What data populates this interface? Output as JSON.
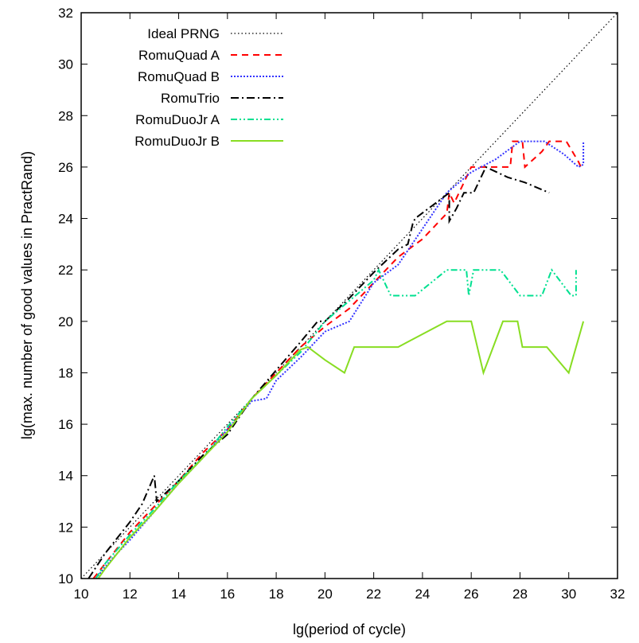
{
  "chart_data": {
    "type": "line",
    "title": "",
    "xlabel": "lg(period of cycle)",
    "ylabel": "lg(max. number of good values in PractRand)",
    "xlim": [
      10,
      32
    ],
    "ylim": [
      10,
      32
    ],
    "xticks": [
      10,
      12,
      14,
      16,
      18,
      20,
      22,
      24,
      26,
      28,
      30,
      32
    ],
    "yticks": [
      10,
      12,
      14,
      16,
      18,
      20,
      22,
      24,
      26,
      28,
      30,
      32
    ],
    "grid": false,
    "legend_position": "top-left",
    "series": [
      {
        "name": "Ideal PRNG",
        "color": "#000000",
        "dash": "dotted",
        "points": [
          [
            10,
            10
          ],
          [
            32,
            32
          ]
        ]
      },
      {
        "name": "RomuQuad A",
        "color": "#ff0000",
        "dash": "dashed",
        "points": [
          [
            10.5,
            10
          ],
          [
            11,
            10.6
          ],
          [
            12,
            11.8
          ],
          [
            13,
            12.8
          ],
          [
            14,
            13.8
          ],
          [
            15,
            14.9
          ],
          [
            16,
            15.8
          ],
          [
            17,
            17
          ],
          [
            18,
            18
          ],
          [
            19,
            19
          ],
          [
            20,
            19.8
          ],
          [
            21,
            20.5
          ],
          [
            22,
            21.5
          ],
          [
            23,
            22.5
          ],
          [
            24,
            23.2
          ],
          [
            25,
            24.2
          ],
          [
            25.1,
            25
          ],
          [
            25.3,
            24.6
          ],
          [
            26,
            26
          ],
          [
            27,
            26
          ],
          [
            27.6,
            26
          ],
          [
            27.7,
            27
          ],
          [
            28.1,
            27
          ],
          [
            28.2,
            26
          ],
          [
            28.9,
            26.6
          ],
          [
            29.2,
            27
          ],
          [
            29.9,
            27
          ],
          [
            30.4,
            26.2
          ],
          [
            30.5,
            26
          ]
        ]
      },
      {
        "name": "RomuQuad B",
        "color": "#3333ff",
        "dash": "dotted-dense",
        "points": [
          [
            10.6,
            10
          ],
          [
            11.2,
            10.7
          ],
          [
            12,
            11.5
          ],
          [
            13,
            12.6
          ],
          [
            14,
            13.7
          ],
          [
            15,
            14.7
          ],
          [
            16,
            15.8
          ],
          [
            17,
            16.9
          ],
          [
            17.6,
            17
          ],
          [
            18,
            17.7
          ],
          [
            19,
            18.6
          ],
          [
            20,
            19.6
          ],
          [
            21,
            20
          ],
          [
            22,
            21.5
          ],
          [
            23,
            22.2
          ],
          [
            24,
            23.6
          ],
          [
            25,
            25
          ],
          [
            26,
            25.8
          ],
          [
            27,
            26.3
          ],
          [
            28,
            27
          ],
          [
            29,
            27
          ],
          [
            29.8,
            26.5
          ],
          [
            30.4,
            26
          ],
          [
            30.6,
            26.1
          ],
          [
            30.6,
            27
          ]
        ]
      },
      {
        "name": "RomuTrio",
        "color": "#000000",
        "dash": "dash-dot",
        "points": [
          [
            10.3,
            10
          ],
          [
            11,
            11
          ],
          [
            12,
            12.2
          ],
          [
            12.5,
            12.9
          ],
          [
            13,
            14
          ],
          [
            13.1,
            13
          ],
          [
            14,
            13.8
          ],
          [
            15,
            14.8
          ],
          [
            16,
            15.6
          ],
          [
            17,
            17
          ],
          [
            18,
            18.1
          ],
          [
            19,
            19.2
          ],
          [
            19.7,
            20
          ],
          [
            20,
            20
          ],
          [
            21,
            20.9
          ],
          [
            22,
            21.9
          ],
          [
            23,
            22.8
          ],
          [
            23.4,
            23
          ],
          [
            23.6,
            23.8
          ],
          [
            23.7,
            24
          ],
          [
            24.4,
            24.5
          ],
          [
            25.1,
            25
          ],
          [
            25.1,
            23.9
          ],
          [
            25.4,
            24.4
          ],
          [
            25.7,
            25
          ],
          [
            26.1,
            25
          ],
          [
            26.6,
            26
          ],
          [
            27.5,
            25.6
          ],
          [
            28.2,
            25.4
          ],
          [
            29.2,
            25
          ]
        ]
      },
      {
        "name": "RomuDuoJr A",
        "color": "#00e090",
        "dash": "dash-dot-dot",
        "points": [
          [
            10.6,
            10
          ],
          [
            11,
            10.6
          ],
          [
            12,
            11.7
          ],
          [
            13,
            12.7
          ],
          [
            14,
            13.8
          ],
          [
            15,
            14.7
          ],
          [
            16,
            15.9
          ],
          [
            17,
            17
          ],
          [
            18,
            17.9
          ],
          [
            19,
            18.8
          ],
          [
            20,
            20
          ],
          [
            21,
            20.8
          ],
          [
            22,
            21.6
          ],
          [
            22.2,
            22
          ],
          [
            22.7,
            21
          ],
          [
            23.7,
            21
          ],
          [
            25,
            22
          ],
          [
            25.8,
            22
          ],
          [
            25.9,
            21
          ],
          [
            26.1,
            22
          ],
          [
            27.2,
            22
          ],
          [
            28,
            21
          ],
          [
            28.9,
            21
          ],
          [
            29.3,
            22
          ],
          [
            30.1,
            21
          ],
          [
            30.3,
            21
          ],
          [
            30.3,
            22
          ]
        ]
      },
      {
        "name": "RomuDuoJr B",
        "color": "#88dd22",
        "dash": "solid",
        "points": [
          [
            10.7,
            10
          ],
          [
            11,
            10.4
          ],
          [
            12,
            11.6
          ],
          [
            13,
            12.6
          ],
          [
            14,
            13.7
          ],
          [
            15,
            14.7
          ],
          [
            16,
            15.7
          ],
          [
            17,
            17
          ],
          [
            18,
            17.9
          ],
          [
            19,
            18.9
          ],
          [
            19.3,
            19
          ],
          [
            20,
            18.5
          ],
          [
            20.8,
            18
          ],
          [
            21.2,
            19
          ],
          [
            23,
            19
          ],
          [
            25,
            20
          ],
          [
            26,
            20
          ],
          [
            26.5,
            18
          ],
          [
            27.3,
            20
          ],
          [
            27.9,
            20
          ],
          [
            28.1,
            19
          ],
          [
            29,
            19
          ],
          [
            29.1,
            19
          ],
          [
            30,
            18
          ],
          [
            30.6,
            20
          ]
        ]
      }
    ]
  }
}
